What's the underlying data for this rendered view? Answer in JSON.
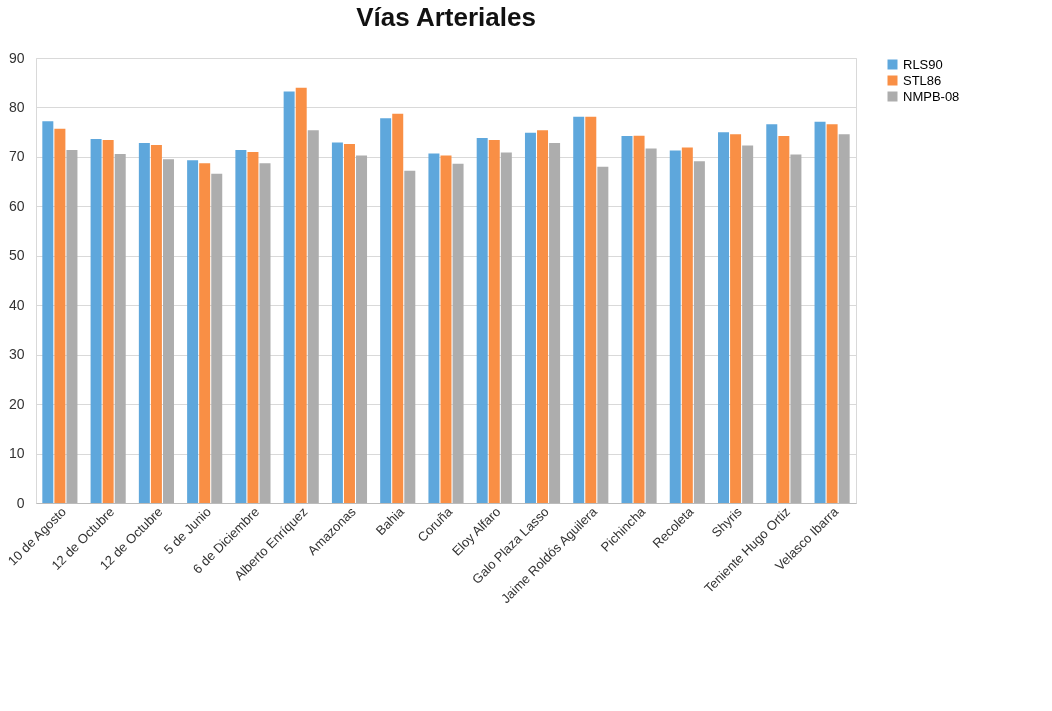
{
  "chart_data": {
    "type": "bar",
    "title": "Vías Arteriales",
    "categories": [
      "10 de Agosto",
      "12 de Octubre",
      "12 de Octubre",
      "5 de Junio",
      "6 de Diciembre",
      "Alberto Enríquez",
      "Amazonas",
      "Bahia",
      "Coruña",
      "Eloy Alfaro",
      "Galo Plaza Lasso",
      "Jaime Roldós Aguilera",
      "Pichincha",
      "Recoleta",
      "Shyris",
      "Teniente Hugo Ortiz",
      "Velasco Ibarra"
    ],
    "series": [
      {
        "name": "RLS90",
        "color": "#5ea7dc",
        "values": [
          77.2,
          73.6,
          72.8,
          69.3,
          71.4,
          83.2,
          72.9,
          77.8,
          70.7,
          73.8,
          74.9,
          78.1,
          74.2,
          71.3,
          75.0,
          76.6,
          77.1
        ]
      },
      {
        "name": "STL86",
        "color": "#f98f45",
        "values": [
          75.7,
          73.4,
          72.4,
          68.7,
          71.0,
          84.0,
          72.6,
          78.7,
          70.3,
          73.4,
          75.4,
          78.1,
          74.3,
          71.9,
          74.6,
          74.2,
          76.6
        ]
      },
      {
        "name": "NMPB-08",
        "color": "#adadad",
        "values": [
          71.4,
          70.6,
          69.5,
          66.6,
          68.7,
          75.4,
          70.3,
          67.2,
          68.6,
          70.9,
          72.8,
          68.0,
          71.7,
          69.1,
          72.3,
          70.5,
          74.6
        ]
      }
    ],
    "ylim": [
      0,
      90
    ],
    "yticks": [
      0,
      10,
      20,
      30,
      40,
      50,
      60,
      70,
      80,
      90
    ],
    "grid": "y",
    "legend": "right"
  }
}
